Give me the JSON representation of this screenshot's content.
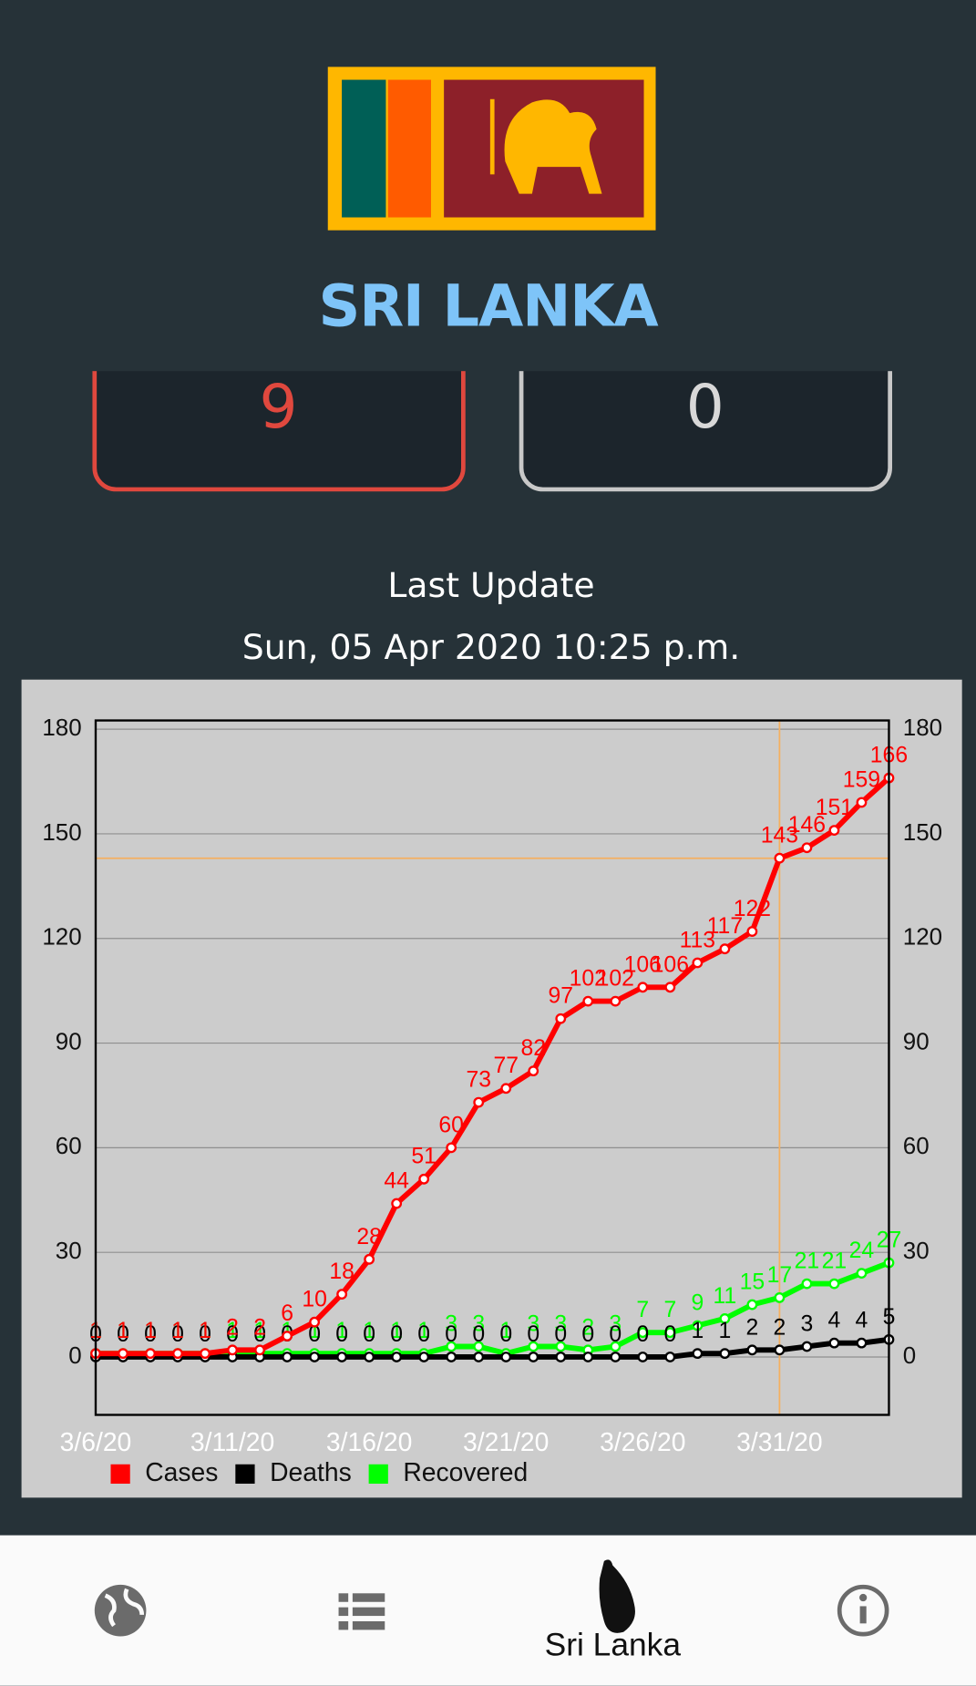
{
  "header": {
    "title": "SRI LANKA"
  },
  "stats": [
    9,
    0
  ],
  "last_update": {
    "label": "Last Update",
    "time": "Sun, 05 Apr 2020 10:25 p.m."
  },
  "chart_data": {
    "type": "line",
    "categories": [
      "3/6/20",
      null,
      null,
      null,
      null,
      "3/11/20",
      null,
      null,
      null,
      null,
      "3/16/20",
      null,
      null,
      null,
      null,
      "3/21/20",
      null,
      null,
      null,
      null,
      "3/26/20",
      null,
      null,
      null,
      null,
      "3/31/20",
      null,
      null,
      null,
      null
    ],
    "series": [
      {
        "name": "Cases",
        "color": "#ff0000",
        "values": [
          1,
          1,
          1,
          1,
          1,
          2,
          2,
          6,
          10,
          18,
          28,
          44,
          51,
          60,
          73,
          77,
          82,
          97,
          102,
          102,
          106,
          106,
          113,
          117,
          122,
          143,
          146,
          151,
          159,
          166
        ]
      },
      {
        "name": "Deaths",
        "color": "#000000",
        "values": [
          0,
          0,
          0,
          0,
          0,
          0,
          0,
          0,
          0,
          0,
          0,
          0,
          0,
          0,
          0,
          0,
          0,
          0,
          0,
          0,
          0,
          0,
          1,
          1,
          2,
          2,
          3,
          4,
          4,
          5
        ]
      },
      {
        "name": "Recovered",
        "color": "#00ff00",
        "values": [
          1,
          1,
          1,
          1,
          1,
          1,
          1,
          1,
          1,
          1,
          1,
          1,
          1,
          3,
          3,
          1,
          3,
          3,
          2,
          3,
          7,
          7,
          9,
          11,
          15,
          17,
          21,
          21,
          24,
          27
        ]
      }
    ],
    "ylim": [
      -16.6,
      182.5
    ],
    "yticks": [
      0,
      30,
      60,
      90,
      120,
      150,
      180
    ],
    "grid": true,
    "legend": "bottom-left",
    "highlight_index": 25
  },
  "nav": {
    "active_label": "Sri Lanka"
  }
}
